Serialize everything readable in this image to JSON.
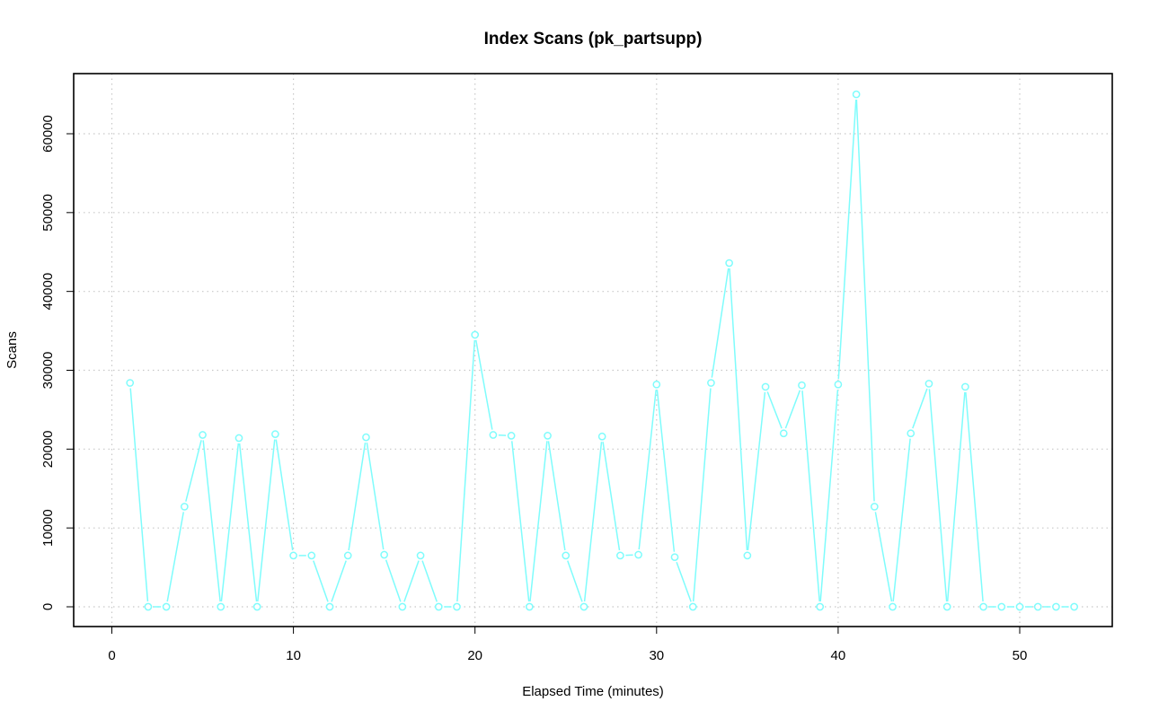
{
  "chart_data": {
    "type": "line",
    "title": "Index Scans (pk_partsupp)",
    "xlabel": "Elapsed Time (minutes)",
    "ylabel": "Scans",
    "xlim": [
      0,
      55
    ],
    "ylim": [
      0,
      65000
    ],
    "x_ticks": [
      0,
      10,
      20,
      30,
      40,
      50
    ],
    "y_ticks": [
      0,
      10000,
      20000,
      30000,
      40000,
      50000,
      60000
    ],
    "grid": true,
    "series": [
      {
        "color": "#7ffcfc",
        "marker": "open-circle",
        "x": [
          1,
          2,
          3,
          4,
          5,
          6,
          7,
          8,
          9,
          10,
          11,
          12,
          13,
          14,
          15,
          16,
          17,
          18,
          19,
          20,
          21,
          22,
          23,
          24,
          25,
          26,
          27,
          28,
          29,
          30,
          31,
          32,
          33,
          34,
          35,
          36,
          37,
          38,
          39,
          40,
          41,
          42,
          43,
          44,
          45,
          46,
          47,
          48,
          49,
          50,
          51,
          52,
          53
        ],
        "values": [
          28400,
          0,
          0,
          12700,
          21800,
          0,
          21400,
          0,
          21900,
          6500,
          6500,
          0,
          6500,
          21500,
          6600,
          0,
          6500,
          0,
          0,
          34500,
          21800,
          21700,
          0,
          21700,
          6500,
          0,
          21600,
          6500,
          6600,
          28200,
          6300,
          0,
          28400,
          43600,
          6500,
          27900,
          22000,
          28100,
          0,
          28200,
          65000,
          12700,
          0,
          22000,
          28300,
          0,
          27900,
          0,
          0,
          0,
          0,
          0,
          0
        ]
      }
    ]
  }
}
